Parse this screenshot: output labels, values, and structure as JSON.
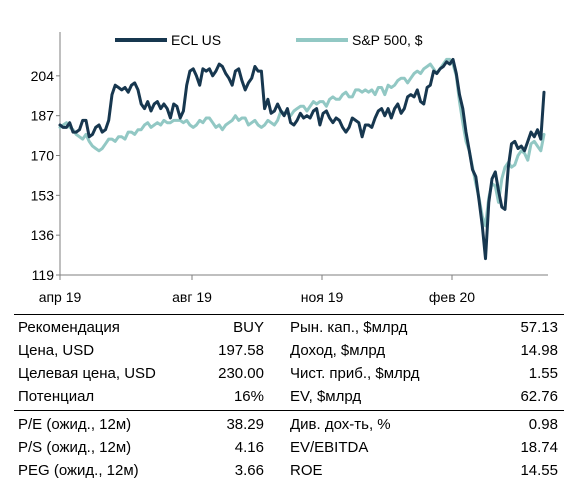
{
  "chart_data": {
    "type": "line",
    "title": "",
    "xlabel": "",
    "ylabel": "",
    "ylim": [
      119,
      221
    ],
    "yticks": [
      119,
      136,
      153,
      170,
      187,
      204
    ],
    "xtick_labels": [
      "апр 19",
      "авг 19",
      "ноя 19",
      "фев 20"
    ],
    "x_range_months": "Mar 2019 – Apr 2020",
    "legend_position": "top",
    "series": [
      {
        "name": "ECL US",
        "color": "#17374f",
        "values": [
          183,
          182,
          182,
          184,
          180,
          180,
          181,
          185,
          185,
          178,
          179,
          182,
          183,
          180,
          181,
          185,
          196,
          200,
          199,
          198,
          199,
          197,
          200,
          201,
          198,
          192,
          190,
          193,
          189,
          192,
          193,
          190,
          192,
          190,
          186,
          192,
          191,
          186,
          189,
          200,
          206,
          207,
          204,
          200,
          207,
          206,
          207,
          204,
          206,
          209,
          208,
          205,
          203,
          200,
          206,
          207,
          202,
          198,
          201,
          203,
          208,
          206,
          206,
          190,
          194,
          188,
          189,
          192,
          189,
          187,
          190,
          184,
          183,
          185,
          188,
          186,
          187,
          186,
          189,
          190,
          183,
          188,
          189,
          186,
          184,
          186,
          185,
          182,
          180,
          182,
          186,
          185,
          184,
          178,
          183,
          183,
          182,
          186,
          189,
          190,
          187,
          190,
          186,
          190,
          192,
          188,
          190,
          195,
          196,
          195,
          198,
          193,
          192,
          199,
          200,
          206,
          205,
          207,
          208,
          210,
          209,
          211,
          205,
          196,
          190,
          180,
          172,
          164,
          161,
          151,
          140,
          126,
          150,
          160,
          163,
          155,
          148,
          147,
          165,
          175,
          176,
          173,
          174,
          172,
          176,
          180,
          178,
          181,
          177,
          197
        ]
      },
      {
        "name": "S&P 500, $",
        "color": "#92c8c4",
        "values": [
          182,
          183,
          184,
          182,
          181,
          179,
          178,
          177,
          179,
          176,
          174,
          173,
          172,
          173,
          175,
          177,
          177,
          176,
          178,
          178,
          177,
          180,
          180,
          179,
          181,
          181,
          183,
          184,
          182,
          183,
          184,
          183,
          185,
          184,
          184,
          185,
          185,
          185,
          184,
          185,
          183,
          182,
          183,
          185,
          184,
          186,
          186,
          184,
          182,
          183,
          181,
          183,
          184,
          185,
          187,
          185,
          186,
          186,
          183,
          184,
          185,
          183,
          182,
          183,
          185,
          184,
          183,
          185,
          189,
          188,
          188,
          187,
          189,
          190,
          191,
          191,
          189,
          191,
          193,
          192,
          193,
          193,
          191,
          194,
          195,
          194,
          194,
          196,
          197,
          195,
          195,
          198,
          198,
          197,
          198,
          197,
          198,
          196,
          199,
          199,
          196,
          200,
          199,
          200,
          202,
          203,
          203,
          201,
          203,
          205,
          206,
          205,
          207,
          208,
          209,
          207,
          205,
          207,
          209,
          211,
          211,
          209,
          204,
          193,
          184,
          176,
          172,
          165,
          158,
          152,
          144,
          140,
          152,
          158,
          157,
          150,
          160,
          165,
          167,
          165,
          166,
          170,
          172,
          171,
          168,
          175,
          176,
          174,
          172,
          179
        ]
      }
    ]
  },
  "metrics": {
    "left": [
      {
        "label": "Рекомендация",
        "value": "BUY"
      },
      {
        "label": "Цена, USD",
        "value": "197.58"
      },
      {
        "label": "Целевая цена, USD",
        "value": "230.00"
      },
      {
        "label": "Потенциал",
        "value": "16%"
      },
      {
        "label": "P/E (ожид., 12м)",
        "value": "38.29"
      },
      {
        "label": "P/S (ожид., 12м)",
        "value": "4.16"
      },
      {
        "label": "PEG (ожид., 12м)",
        "value": "3.66"
      }
    ],
    "right": [
      {
        "label": "Рын. кап., $млрд",
        "value": "57.13"
      },
      {
        "label": "Доход, $млрд",
        "value": "14.98"
      },
      {
        "label": "Чист. приб., $млрд",
        "value": "1.55"
      },
      {
        "label": "EV, $млрд",
        "value": "62.76"
      },
      {
        "label": "Див. дох-ть, %",
        "value": "0.98"
      },
      {
        "label": "EV/EBITDA",
        "value": "18.74"
      },
      {
        "label": "ROE",
        "value": "14.55"
      }
    ]
  }
}
